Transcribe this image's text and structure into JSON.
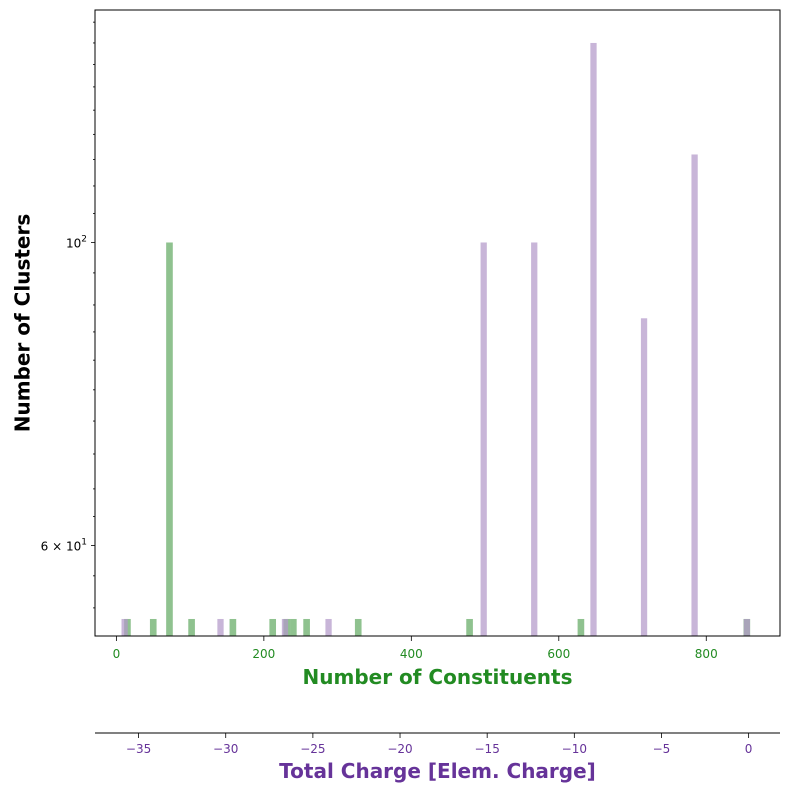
{
  "chart_data": {
    "type": "bar",
    "yscale": "log",
    "ylabel": "Number of Clusters",
    "ylim": [
      51.5,
      148
    ],
    "y_ticks": [
      {
        "value": 100,
        "label": "10",
        "sup": "2"
      },
      {
        "value": 60,
        "label": "6 × 10",
        "sup": "1"
      }
    ],
    "y_minor_ticks": [
      54,
      57,
      63,
      66,
      70,
      74,
      78,
      82,
      86,
      90,
      95,
      105,
      110,
      115,
      120,
      125,
      130,
      135,
      140,
      145
    ],
    "x_bottom": {
      "label": "Number of Constituents",
      "color": "#228b22",
      "xlim": [
        -29,
        900
      ],
      "ticks": [
        0,
        200,
        400,
        600,
        800
      ],
      "tick_labels": [
        "0",
        "200",
        "400",
        "600",
        "800"
      ]
    },
    "x_top": {
      "label": "Total Charge [Elem. Charge]",
      "color": "#663399",
      "xlim": [
        -37.5,
        1.8
      ],
      "ticks": [
        -35,
        -30,
        -25,
        -20,
        -15,
        -10,
        -5,
        0
      ],
      "tick_labels": [
        "−35",
        "−30",
        "−25",
        "−20",
        "−15",
        "−10",
        "−5",
        "0"
      ]
    },
    "series": [
      {
        "name": "Number of Constituents",
        "axis": "bottom",
        "color": "#8fc28f",
        "bin_width": 9,
        "x": [
          15,
          50,
          72,
          102,
          158,
          212,
          231,
          240,
          258,
          328,
          479,
          630,
          855
        ],
        "values": [
          53,
          53,
          100,
          53,
          53,
          53,
          53,
          53,
          53,
          53,
          53,
          53,
          53
        ]
      },
      {
        "name": "Total Charge",
        "axis": "top",
        "color": "#b399c9",
        "bin_width": 0.36,
        "x": [
          -35.8,
          -30.3,
          -26.6,
          -24.1,
          -15.2,
          -12.3,
          -8.9,
          -6.0,
          -3.1,
          -0.1
        ],
        "values": [
          53,
          53,
          53,
          53,
          100,
          100,
          140,
          88,
          116,
          53
        ]
      }
    ]
  }
}
